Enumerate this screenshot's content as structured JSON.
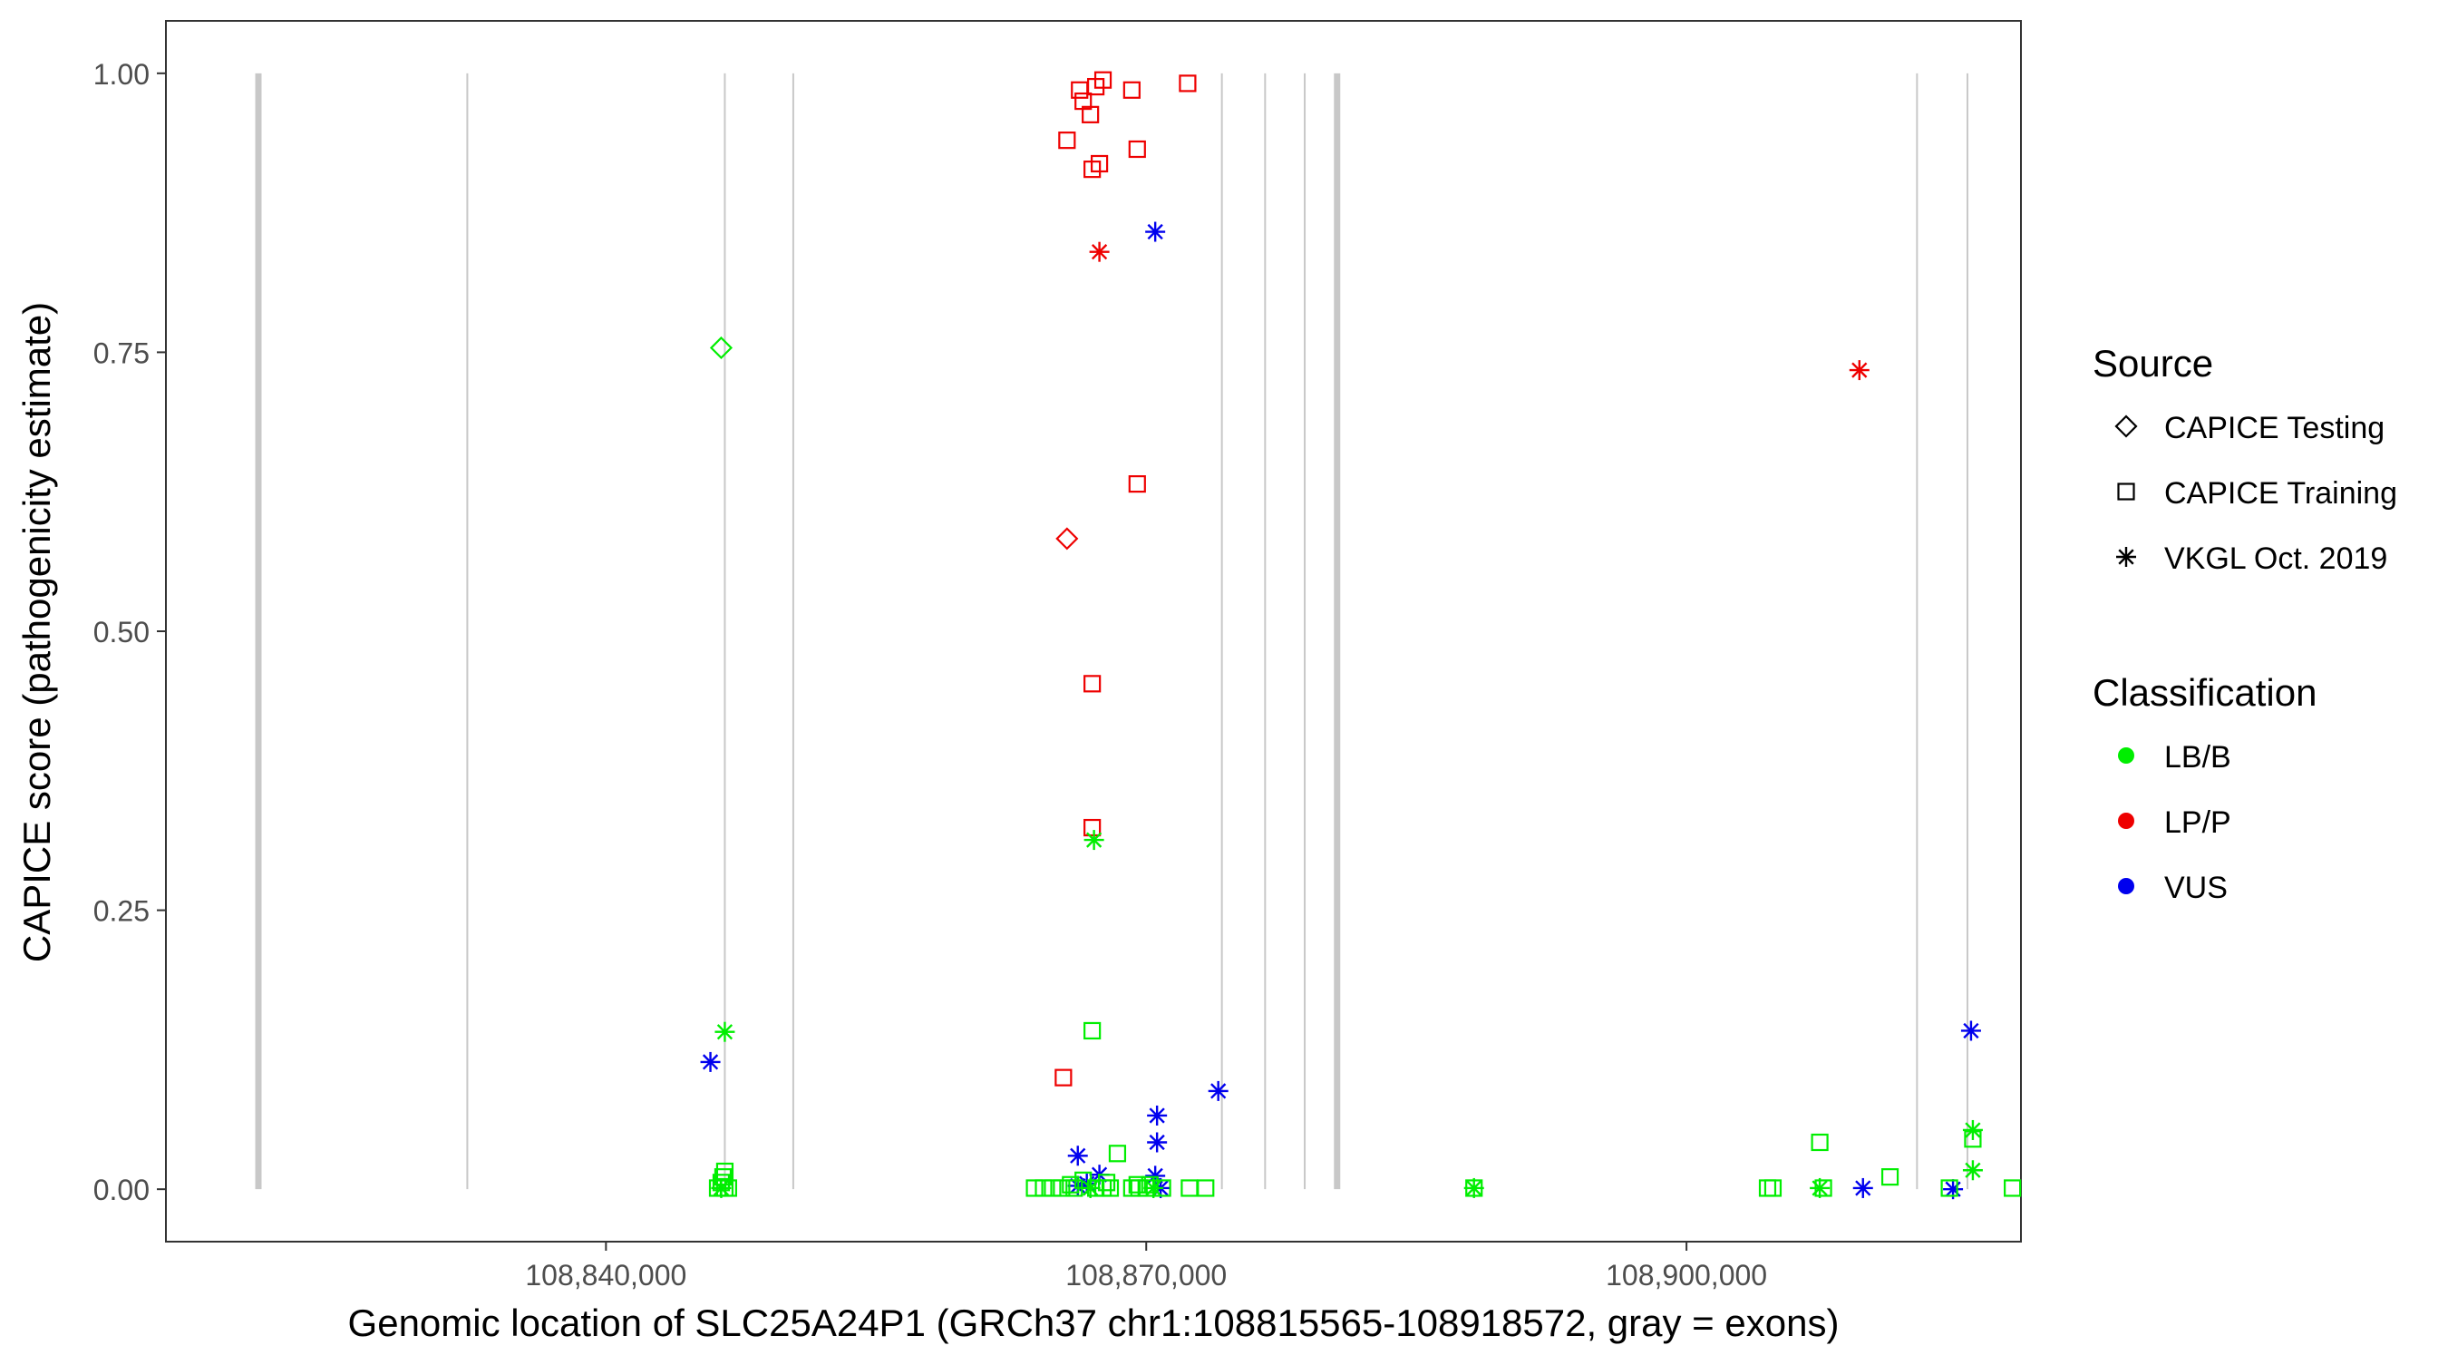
{
  "chart_data": {
    "type": "scatter",
    "xlabel": "Genomic location of SLC25A24P1 (GRCh37 chr1:108815565-108918572, gray = exons)",
    "ylabel": "CAPICE score (pathogenicity estimate)",
    "xlim": [
      108815565,
      108918572
    ],
    "ylim": [
      -0.047,
      1.047
    ],
    "x_ticks": [
      108840000,
      108870000,
      108900000
    ],
    "x_tick_labels": [
      "108,840,000",
      "108,870,000",
      "108,900,000"
    ],
    "y_ticks": [
      0.0,
      0.25,
      0.5,
      0.75,
      1.0
    ],
    "y_tick_labels": [
      "0.00",
      "0.25",
      "0.50",
      "0.75",
      "1.00"
    ],
    "grid": false,
    "exons": [
      {
        "x": 108820700,
        "thick": true
      },
      {
        "x": 108832300,
        "thick": false
      },
      {
        "x": 108846600,
        "thick": false
      },
      {
        "x": 108850400,
        "thick": false
      },
      {
        "x": 108874200,
        "thick": false
      },
      {
        "x": 108876600,
        "thick": false
      },
      {
        "x": 108878800,
        "thick": false
      },
      {
        "x": 108880600,
        "thick": true
      },
      {
        "x": 108912800,
        "thick": false
      },
      {
        "x": 108915600,
        "thick": false
      }
    ],
    "legend": {
      "placement": "right",
      "shape_title": "Source",
      "shape_entries": [
        {
          "label": "CAPICE Testing",
          "shape": "diamond"
        },
        {
          "label": "CAPICE Training",
          "shape": "square"
        },
        {
          "label": "VKGL Oct. 2019",
          "shape": "asterisk"
        }
      ],
      "color_title": "Classification",
      "color_entries": [
        {
          "label": "LB/B",
          "color": "#00ee00"
        },
        {
          "label": "LP/P",
          "color": "#ee0000"
        },
        {
          "label": "VUS",
          "color": "#0000ee"
        }
      ]
    },
    "series": [
      {
        "name": "LP/P",
        "color": "#ee0000",
        "points": [
          {
            "x": 108866300,
            "y": 0.985,
            "shape": "square"
          },
          {
            "x": 108866500,
            "y": 0.975,
            "shape": "square"
          },
          {
            "x": 108866900,
            "y": 0.963,
            "shape": "square"
          },
          {
            "x": 108867200,
            "y": 0.988,
            "shape": "square"
          },
          {
            "x": 108867600,
            "y": 0.994,
            "shape": "square"
          },
          {
            "x": 108869200,
            "y": 0.985,
            "shape": "square"
          },
          {
            "x": 108872300,
            "y": 0.991,
            "shape": "square"
          },
          {
            "x": 108865600,
            "y": 0.94,
            "shape": "square"
          },
          {
            "x": 108867000,
            "y": 0.914,
            "shape": "square"
          },
          {
            "x": 108867400,
            "y": 0.919,
            "shape": "square"
          },
          {
            "x": 108869500,
            "y": 0.932,
            "shape": "square"
          },
          {
            "x": 108867400,
            "y": 0.84,
            "shape": "asterisk"
          },
          {
            "x": 108869500,
            "y": 0.632,
            "shape": "square"
          },
          {
            "x": 108865600,
            "y": 0.583,
            "shape": "diamond"
          },
          {
            "x": 108867000,
            "y": 0.453,
            "shape": "square"
          },
          {
            "x": 108867000,
            "y": 0.324,
            "shape": "square"
          },
          {
            "x": 108865400,
            "y": 0.1,
            "shape": "square"
          },
          {
            "x": 108909600,
            "y": 0.734,
            "shape": "asterisk"
          }
        ]
      },
      {
        "name": "VUS",
        "color": "#0000ee",
        "points": [
          {
            "x": 108870500,
            "y": 0.858,
            "shape": "asterisk"
          },
          {
            "x": 108845800,
            "y": 0.114,
            "shape": "asterisk"
          },
          {
            "x": 108874000,
            "y": 0.088,
            "shape": "asterisk"
          },
          {
            "x": 108870600,
            "y": 0.066,
            "shape": "asterisk"
          },
          {
            "x": 108870600,
            "y": 0.042,
            "shape": "asterisk"
          },
          {
            "x": 108866200,
            "y": 0.03,
            "shape": "asterisk"
          },
          {
            "x": 108867400,
            "y": 0.013,
            "shape": "asterisk"
          },
          {
            "x": 108870500,
            "y": 0.012,
            "shape": "asterisk"
          },
          {
            "x": 108866200,
            "y": 0.003,
            "shape": "asterisk"
          },
          {
            "x": 108866700,
            "y": 0.005,
            "shape": "asterisk"
          },
          {
            "x": 108870800,
            "y": 0.001,
            "shape": "asterisk"
          },
          {
            "x": 108909800,
            "y": 0.001,
            "shape": "asterisk"
          },
          {
            "x": 108914800,
            "y": 0.0,
            "shape": "asterisk"
          },
          {
            "x": 108915800,
            "y": 0.142,
            "shape": "asterisk"
          }
        ]
      },
      {
        "name": "LB/B",
        "color": "#00ee00",
        "points": [
          {
            "x": 108846400,
            "y": 0.754,
            "shape": "diamond"
          },
          {
            "x": 108867100,
            "y": 0.313,
            "shape": "asterisk"
          },
          {
            "x": 108867000,
            "y": 0.142,
            "shape": "square"
          },
          {
            "x": 108846600,
            "y": 0.141,
            "shape": "asterisk"
          },
          {
            "x": 108868400,
            "y": 0.032,
            "shape": "square"
          },
          {
            "x": 108907400,
            "y": 0.042,
            "shape": "square"
          },
          {
            "x": 108915900,
            "y": 0.053,
            "shape": "asterisk"
          },
          {
            "x": 108915900,
            "y": 0.045,
            "shape": "square"
          },
          {
            "x": 108915900,
            "y": 0.017,
            "shape": "asterisk"
          },
          {
            "x": 108911300,
            "y": 0.011,
            "shape": "square"
          },
          {
            "x": 108846600,
            "y": 0.016,
            "shape": "square"
          },
          {
            "x": 108846500,
            "y": 0.011,
            "shape": "square"
          },
          {
            "x": 108846400,
            "y": 0.006,
            "shape": "square"
          },
          {
            "x": 108846200,
            "y": 0.001,
            "shape": "square"
          },
          {
            "x": 108846400,
            "y": 0.001,
            "shape": "asterisk"
          },
          {
            "x": 108846600,
            "y": 0.001,
            "shape": "square"
          },
          {
            "x": 108846800,
            "y": 0.001,
            "shape": "square"
          },
          {
            "x": 108866500,
            "y": 0.008,
            "shape": "square"
          },
          {
            "x": 108867800,
            "y": 0.006,
            "shape": "square"
          },
          {
            "x": 108865800,
            "y": 0.004,
            "shape": "square"
          },
          {
            "x": 108869500,
            "y": 0.004,
            "shape": "square"
          },
          {
            "x": 108870200,
            "y": 0.004,
            "shape": "square"
          },
          {
            "x": 108863800,
            "y": 0.001,
            "shape": "square"
          },
          {
            "x": 108864300,
            "y": 0.001,
            "shape": "square"
          },
          {
            "x": 108864800,
            "y": 0.001,
            "shape": "square"
          },
          {
            "x": 108865300,
            "y": 0.001,
            "shape": "square"
          },
          {
            "x": 108866000,
            "y": 0.001,
            "shape": "square"
          },
          {
            "x": 108867200,
            "y": 0.001,
            "shape": "square"
          },
          {
            "x": 108867600,
            "y": 0.001,
            "shape": "square"
          },
          {
            "x": 108868000,
            "y": 0.001,
            "shape": "square"
          },
          {
            "x": 108869200,
            "y": 0.001,
            "shape": "square"
          },
          {
            "x": 108869600,
            "y": 0.001,
            "shape": "square"
          },
          {
            "x": 108870000,
            "y": 0.001,
            "shape": "square"
          },
          {
            "x": 108870900,
            "y": 0.001,
            "shape": "square"
          },
          {
            "x": 108872400,
            "y": 0.001,
            "shape": "square"
          },
          {
            "x": 108873300,
            "y": 0.001,
            "shape": "square"
          },
          {
            "x": 108866900,
            "y": 0.001,
            "shape": "asterisk"
          },
          {
            "x": 108870400,
            "y": 0.001,
            "shape": "asterisk"
          },
          {
            "x": 108888200,
            "y": 0.001,
            "shape": "square"
          },
          {
            "x": 108888200,
            "y": 0.001,
            "shape": "asterisk"
          },
          {
            "x": 108904500,
            "y": 0.001,
            "shape": "square"
          },
          {
            "x": 108904800,
            "y": 0.001,
            "shape": "square"
          },
          {
            "x": 108907600,
            "y": 0.001,
            "shape": "square"
          },
          {
            "x": 108907400,
            "y": 0.001,
            "shape": "asterisk"
          },
          {
            "x": 108914600,
            "y": 0.001,
            "shape": "square"
          },
          {
            "x": 108918100,
            "y": 0.001,
            "shape": "square"
          }
        ]
      }
    ]
  }
}
